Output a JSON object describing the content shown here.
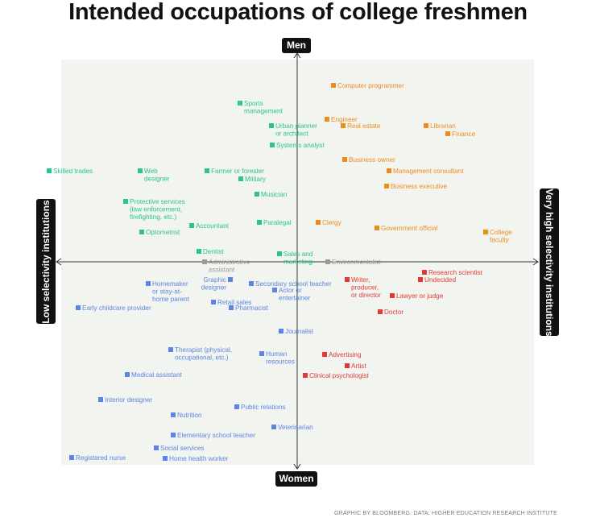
{
  "title": "Intended occupations of college freshmen",
  "credit": "GRAPHIC BY BLOOMBERG. DATA: HIGHER EDUCATION RESEARCH INSTITUTE",
  "colors": {
    "background": "#f2f4ef",
    "axis": "#333333",
    "men_low": "#2bc48a",
    "men_high": "#f08a1c",
    "women_low": "#5b84e6",
    "women_high": "#e13a36",
    "neutral": "#9a9a9a"
  },
  "chart_data": {
    "type": "scatter",
    "title": "Intended occupations of college freshmen",
    "axes": {
      "y_top": "Men",
      "y_bottom": "Women",
      "x_left": "Low selectivity institutions",
      "x_right": "Very high selectivity institutions"
    },
    "grid": false,
    "note": "",
    "xlim": [
      -304,
      304
    ],
    "ylim": [
      -252,
      252
    ],
    "points": [
      {
        "label": "Computer programmer",
        "x": 45,
        "y": 219,
        "group": "men_high"
      },
      {
        "label": "Sports management",
        "x": -71,
        "y": 197,
        "group": "men_low"
      },
      {
        "label": "Engineer",
        "x": 37,
        "y": 177,
        "group": "men_high"
      },
      {
        "label": "Urban planner or architect",
        "x": -32,
        "y": 169,
        "group": "men_low"
      },
      {
        "label": "Real estate",
        "x": 57,
        "y": 169,
        "group": "men_high"
      },
      {
        "label": "Librarian",
        "x": 160,
        "y": 169,
        "group": "men_high"
      },
      {
        "label": "Finance",
        "x": 187,
        "y": 159,
        "group": "men_high"
      },
      {
        "label": "Systems analyst",
        "x": -31,
        "y": 145,
        "group": "men_low"
      },
      {
        "label": "Business owner",
        "x": 59,
        "y": 127,
        "group": "men_high"
      },
      {
        "label": "Skilled trades",
        "x": -308,
        "y": 113,
        "group": "men_low"
      },
      {
        "label": "Web designer",
        "x": -195,
        "y": 113,
        "group": "men_low"
      },
      {
        "label": "Farmer or forester",
        "x": -112,
        "y": 113,
        "group": "men_low"
      },
      {
        "label": "Management consultant",
        "x": 114,
        "y": 113,
        "group": "men_high"
      },
      {
        "label": "Military",
        "x": -70,
        "y": 103,
        "group": "men_low"
      },
      {
        "label": "Business executive",
        "x": 111,
        "y": 94,
        "group": "men_high"
      },
      {
        "label": "Musician",
        "x": -50,
        "y": 84,
        "group": "men_low"
      },
      {
        "label": "Protective services (law enforcement, firefighting, etc.)",
        "x": -213,
        "y": 75,
        "group": "men_low"
      },
      {
        "label": "Paralegal",
        "x": -47,
        "y": 49,
        "group": "men_low"
      },
      {
        "label": "Clergy",
        "x": 26,
        "y": 49,
        "group": "men_high"
      },
      {
        "label": "Accountant",
        "x": -131,
        "y": 45,
        "group": "men_low"
      },
      {
        "label": "Government official",
        "x": 99,
        "y": 42,
        "group": "men_high"
      },
      {
        "label": "Optometrist",
        "x": -193,
        "y": 37,
        "group": "men_low"
      },
      {
        "label": "College faculty",
        "x": 234,
        "y": 37,
        "group": "men_high"
      },
      {
        "label": "Dentist",
        "x": -122,
        "y": 13,
        "group": "men_low"
      },
      {
        "label": "Sales and marketing",
        "x": -22,
        "y": 10,
        "group": "men_low"
      },
      {
        "label": "Administrative assistant",
        "x": -115,
        "y": 0,
        "group": "neutral"
      },
      {
        "label": "Environmentalist",
        "x": 38,
        "y": 0,
        "group": "neutral"
      },
      {
        "label": "Research scientist",
        "x": 158,
        "y": -13,
        "group": "women_high"
      },
      {
        "label": "Graphic designer",
        "x": -83,
        "y": -22,
        "group": "women_low"
      },
      {
        "label": "Undecided",
        "x": 153,
        "y": -22,
        "group": "women_high"
      },
      {
        "label": "Writer, producer, or director",
        "x": 62,
        "y": -22,
        "group": "women_high"
      },
      {
        "label": "Homemaker or stay-at-home parent",
        "x": -185,
        "y": -27,
        "group": "women_low"
      },
      {
        "label": "Secondary school teacher",
        "x": -57,
        "y": -27,
        "group": "women_low"
      },
      {
        "label": "Actor or entertainer",
        "x": -28,
        "y": -35,
        "group": "women_low"
      },
      {
        "label": "Lawyer or judge",
        "x": 118,
        "y": -42,
        "group": "women_high"
      },
      {
        "label": "Retail sales",
        "x": -104,
        "y": -50,
        "group": "women_low"
      },
      {
        "label": "Pharmacist",
        "x": -82,
        "y": -57,
        "group": "women_low"
      },
      {
        "label": "Early childcare provider",
        "x": -272,
        "y": -57,
        "group": "women_low"
      },
      {
        "label": "Doctor",
        "x": 103,
        "y": -62,
        "group": "women_high"
      },
      {
        "label": "Journalist",
        "x": -20,
        "y": -86,
        "group": "women_low"
      },
      {
        "label": "Therapist (physical, occupational, etc.)",
        "x": -157,
        "y": -109,
        "group": "women_low"
      },
      {
        "label": "Human resources",
        "x": -44,
        "y": -114,
        "group": "women_low"
      },
      {
        "label": "Advertising",
        "x": 34,
        "y": -115,
        "group": "women_high"
      },
      {
        "label": "Artist",
        "x": 62,
        "y": -129,
        "group": "women_high"
      },
      {
        "label": "Medical assistant",
        "x": -211,
        "y": -140,
        "group": "women_low"
      },
      {
        "label": "Clinical psychologist",
        "x": 10,
        "y": -141,
        "group": "women_high"
      },
      {
        "label": "Interior designer",
        "x": -244,
        "y": -171,
        "group": "women_low"
      },
      {
        "label": "Public relations",
        "x": -75,
        "y": -180,
        "group": "women_low"
      },
      {
        "label": "Nutrition",
        "x": -154,
        "y": -190,
        "group": "women_low"
      },
      {
        "label": "Veterinarian",
        "x": -29,
        "y": -205,
        "group": "women_low"
      },
      {
        "label": "Elementary school teacher",
        "x": -154,
        "y": -215,
        "group": "women_low"
      },
      {
        "label": "Social services",
        "x": -175,
        "y": -231,
        "group": "women_low"
      },
      {
        "label": "Registered nurse",
        "x": -280,
        "y": -243,
        "group": "women_low"
      },
      {
        "label": "Home health worker",
        "x": -164,
        "y": -244,
        "group": "women_low"
      }
    ]
  }
}
